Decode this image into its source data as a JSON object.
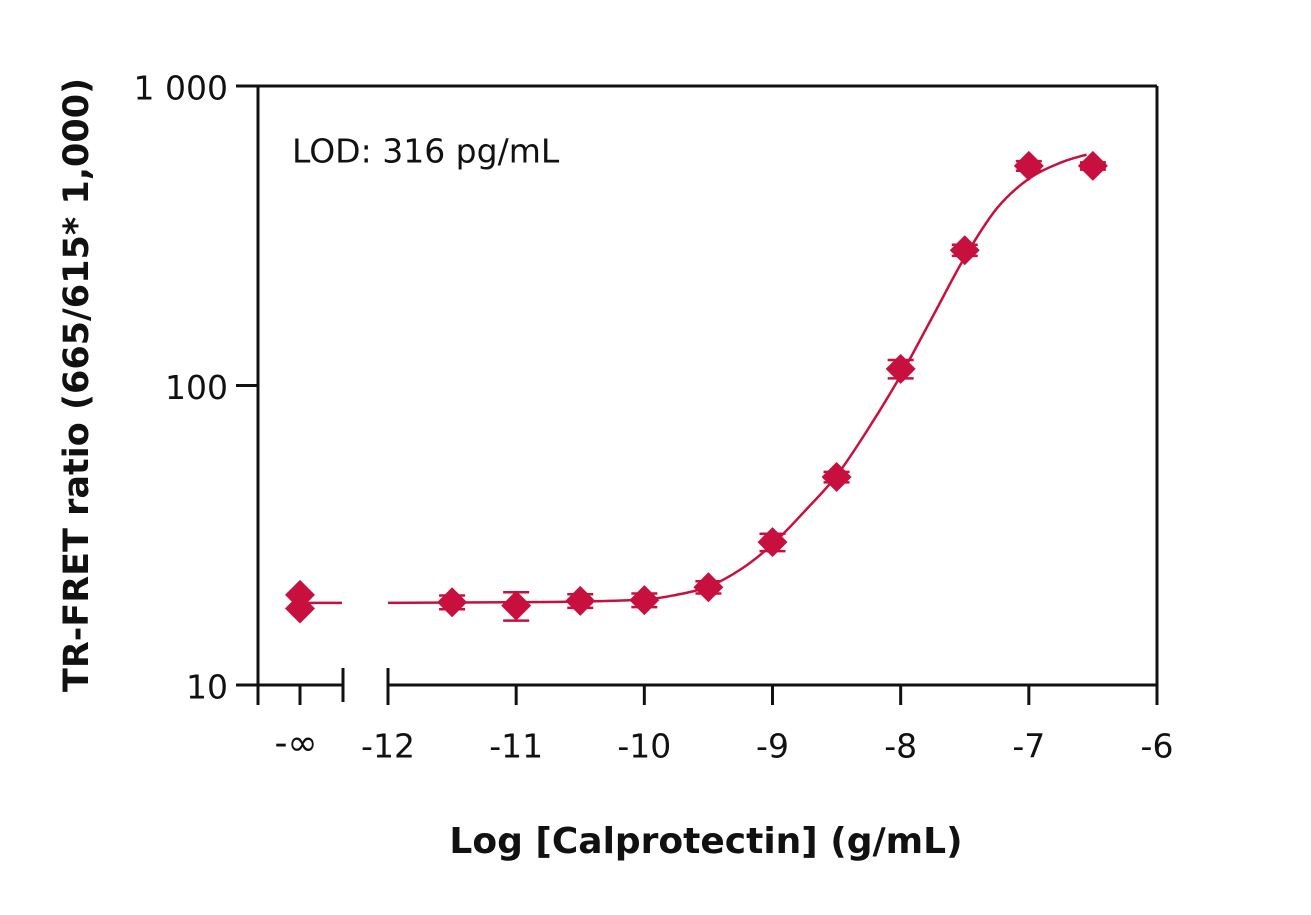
{
  "chart_data": {
    "type": "scatter",
    "ylabel": "TR-FRET ratio (665/615* 1,000)",
    "xlabel": "Log [Calprotectin] (g/mL)",
    "annotation": "LOD: 316 pg/mL",
    "color": "#c8103f",
    "ylog": true,
    "ylim": [
      10,
      1000
    ],
    "yticks": [
      10,
      100,
      {
        "value": 1000,
        "label": "1 000"
      }
    ],
    "xlim": [
      -12,
      -6
    ],
    "xticks": [
      -12,
      -11,
      -10,
      -9,
      -8,
      -7,
      -6
    ],
    "break": {
      "label": "-∞",
      "values": [
        20,
        18
      ],
      "fit": 18.8
    },
    "series": [
      {
        "x": [
          -11.5,
          -11,
          -10.5,
          -10,
          -9.5,
          -9,
          -8.5,
          -8,
          -7.5,
          -7,
          -6.5
        ],
        "values": [
          18.9,
          18.4,
          19.1,
          19.2,
          21.2,
          30,
          49.5,
          113.6,
          283,
          541,
          541
        ],
        "errors": [
          1,
          2,
          1,
          1,
          1,
          2,
          2,
          8,
          12,
          20,
          15
        ]
      }
    ],
    "fit": {
      "x": [
        -12,
        -11,
        -10.5,
        -10,
        -9.75,
        -9.5,
        -9.25,
        -9,
        -8.75,
        -8.5,
        -8.25,
        -8,
        -7.75,
        -7.5,
        -7.25,
        -7,
        -6.75,
        -6.55
      ],
      "values": [
        18.8,
        18.9,
        19,
        19.3,
        20,
        21.3,
        24.3,
        29.5,
        38,
        50,
        72,
        108,
        170,
        268,
        390,
        490,
        555,
        590
      ]
    }
  }
}
